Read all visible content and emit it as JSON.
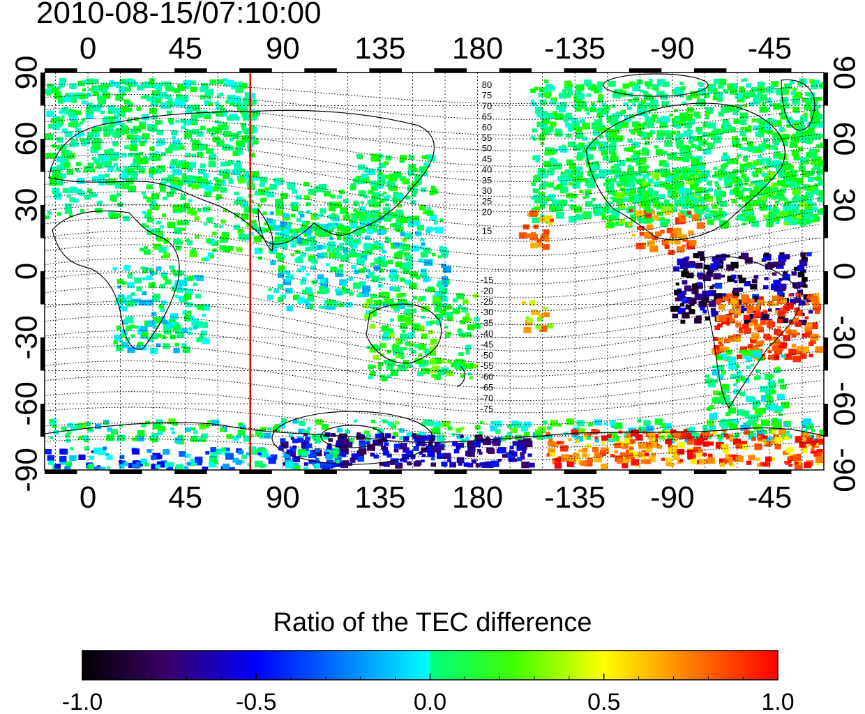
{
  "timestamp": "2010-08-15/07:10:00",
  "map": {
    "lon_ticks_top": [
      "0",
      "45",
      "90",
      "135",
      "180",
      "-135",
      "-90",
      "-45"
    ],
    "lon_ticks_bottom": [
      "0",
      "45",
      "90",
      "135",
      "180",
      "-135",
      "-90",
      "-45"
    ],
    "lat_ticks_left": [
      "90",
      "60",
      "30",
      "0",
      "-30",
      "-60",
      "-90"
    ],
    "lat_ticks_right": [
      "90",
      "60",
      "30",
      "0",
      "-30",
      "-60",
      "-90"
    ],
    "lon_range": [
      -20,
      340
    ],
    "lat_range": [
      -90,
      90
    ],
    "grid": true,
    "meridian_marker_lon": 75,
    "meridian_marker_color": "#e00000",
    "contour_labels_north": [
      "80",
      "75",
      "70",
      "65",
      "60",
      "55",
      "50",
      "45",
      "40",
      "35",
      "30",
      "25",
      "20",
      "15"
    ],
    "contour_labels_south": [
      "-15",
      "-20",
      "-25",
      "-30",
      "-35",
      "-40",
      "-45",
      "-50",
      "-55",
      "-60",
      "-65",
      "-70",
      "-75"
    ]
  },
  "colorbar": {
    "title": "Ratio of the TEC difference",
    "ticks": [
      "-1.0",
      "-0.5",
      "0.0",
      "0.5",
      "1.0"
    ],
    "range": [
      -1.0,
      1.0
    ],
    "colors": [
      "#000000",
      "#3a0066",
      "#0000ff",
      "#00ffff",
      "#00ff00",
      "#ffff00",
      "#ff8000",
      "#ff0000"
    ]
  }
}
